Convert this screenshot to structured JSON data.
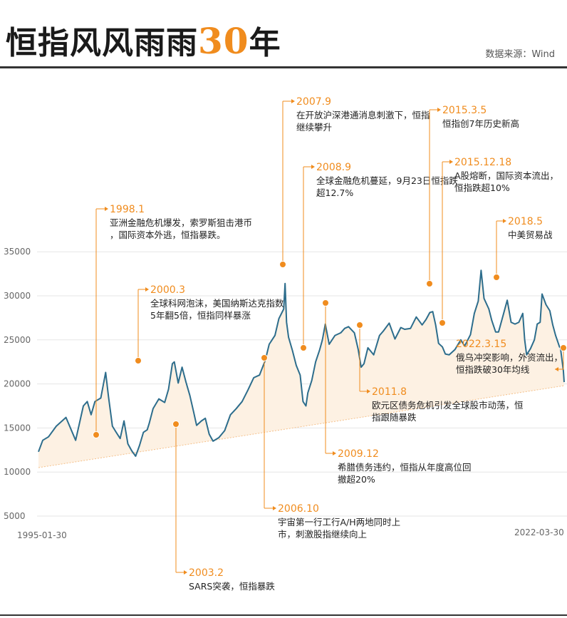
{
  "header": {
    "title_main": "恒指风风雨雨",
    "title_num": "30",
    "title_tail": "年",
    "source": "数据来源：Wind"
  },
  "colors": {
    "accent": "#f08c1e",
    "line": "#2d6d8c",
    "fill": "#fdf1e3"
  },
  "chart_data": {
    "type": "line",
    "x_start": "1995-01-30",
    "x_end": "2022-03-30",
    "yticks": [
      5000,
      10000,
      15000,
      20000,
      25000,
      30000,
      35000
    ],
    "ylim": [
      3000,
      37000
    ],
    "series": [
      {
        "points": [
          [
            1995.08,
            12300
          ],
          [
            1995.3,
            13600
          ],
          [
            1995.6,
            14000
          ],
          [
            1996.0,
            15200
          ],
          [
            1996.5,
            16200
          ],
          [
            1997.0,
            13600
          ],
          [
            1997.4,
            17500
          ],
          [
            1997.6,
            18000
          ],
          [
            1997.8,
            16500
          ],
          [
            1998.0,
            18000
          ],
          [
            1998.3,
            18400
          ],
          [
            1998.55,
            21300
          ],
          [
            1998.7,
            18500
          ],
          [
            1998.9,
            15200
          ],
          [
            1999.1,
            14500
          ],
          [
            1999.3,
            13800
          ],
          [
            1999.5,
            15800
          ],
          [
            1999.7,
            13200
          ],
          [
            1999.9,
            12400
          ],
          [
            2000.1,
            11800
          ],
          [
            2000.3,
            13000
          ],
          [
            2000.5,
            14500
          ],
          [
            2000.7,
            14800
          ],
          [
            2000.8,
            15500
          ],
          [
            2001.0,
            17200
          ],
          [
            2001.3,
            18300
          ],
          [
            2001.6,
            17900
          ],
          [
            2001.8,
            19400
          ],
          [
            2002.0,
            22300
          ],
          [
            2002.1,
            22500
          ],
          [
            2002.3,
            20100
          ],
          [
            2002.5,
            21900
          ],
          [
            2002.7,
            20200
          ],
          [
            2002.9,
            18700
          ],
          [
            2003.1,
            16800
          ],
          [
            2003.25,
            15300
          ],
          [
            2003.5,
            15800
          ],
          [
            2003.7,
            16100
          ],
          [
            2003.9,
            14300
          ],
          [
            2004.1,
            13500
          ],
          [
            2004.4,
            13900
          ],
          [
            2004.7,
            14700
          ],
          [
            2005.0,
            16500
          ],
          [
            2005.3,
            17200
          ],
          [
            2005.6,
            18000
          ],
          [
            2005.9,
            19300
          ],
          [
            2006.2,
            20700
          ],
          [
            2006.5,
            21000
          ],
          [
            2006.8,
            22700
          ],
          [
            2007.0,
            24500
          ],
          [
            2007.3,
            25500
          ],
          [
            2007.5,
            27400
          ],
          [
            2007.75,
            28500
          ],
          [
            2007.82,
            31400
          ],
          [
            2007.9,
            27000
          ],
          [
            2008.0,
            25300
          ],
          [
            2008.2,
            23800
          ],
          [
            2008.4,
            22100
          ],
          [
            2008.6,
            21000
          ],
          [
            2008.75,
            18000
          ],
          [
            2008.9,
            17500
          ],
          [
            2009.0,
            19000
          ],
          [
            2009.2,
            20400
          ],
          [
            2009.4,
            22500
          ],
          [
            2009.6,
            23800
          ],
          [
            2009.75,
            25000
          ],
          [
            2009.9,
            26800
          ],
          [
            2010.1,
            24500
          ],
          [
            2010.4,
            25500
          ],
          [
            2010.7,
            25800
          ],
          [
            2010.9,
            26300
          ],
          [
            2011.1,
            26500
          ],
          [
            2011.4,
            25800
          ],
          [
            2011.6,
            23900
          ],
          [
            2011.75,
            21900
          ],
          [
            2011.9,
            22300
          ],
          [
            2012.1,
            24100
          ],
          [
            2012.4,
            23300
          ],
          [
            2012.7,
            25500
          ],
          [
            2012.9,
            26000
          ],
          [
            2013.2,
            26900
          ],
          [
            2013.5,
            25100
          ],
          [
            2013.8,
            26400
          ],
          [
            2014.0,
            26200
          ],
          [
            2014.3,
            26300
          ],
          [
            2014.6,
            27600
          ],
          [
            2014.9,
            26700
          ],
          [
            2015.1,
            27300
          ],
          [
            2015.3,
            28100
          ],
          [
            2015.45,
            28200
          ],
          [
            2015.6,
            26700
          ],
          [
            2015.75,
            24600
          ],
          [
            2015.95,
            24200
          ],
          [
            2016.1,
            23400
          ],
          [
            2016.3,
            23300
          ],
          [
            2016.6,
            23900
          ],
          [
            2016.9,
            25000
          ],
          [
            2017.1,
            24300
          ],
          [
            2017.4,
            25600
          ],
          [
            2017.6,
            28000
          ],
          [
            2017.8,
            29400
          ],
          [
            2017.95,
            32900
          ],
          [
            2018.1,
            29700
          ],
          [
            2018.35,
            28500
          ],
          [
            2018.5,
            27200
          ],
          [
            2018.7,
            25900
          ],
          [
            2018.85,
            25900
          ],
          [
            2019.1,
            27900
          ],
          [
            2019.3,
            29500
          ],
          [
            2019.5,
            27000
          ],
          [
            2019.7,
            26800
          ],
          [
            2019.9,
            27000
          ],
          [
            2020.1,
            28000
          ],
          [
            2020.2,
            25000
          ],
          [
            2020.3,
            23300
          ],
          [
            2020.5,
            24000
          ],
          [
            2020.7,
            25000
          ],
          [
            2020.85,
            26800
          ],
          [
            2021.0,
            27000
          ],
          [
            2021.1,
            30200
          ],
          [
            2021.3,
            29000
          ],
          [
            2021.5,
            28300
          ],
          [
            2021.65,
            26700
          ],
          [
            2021.8,
            25500
          ],
          [
            2022.0,
            24200
          ],
          [
            2022.05,
            24100
          ],
          [
            2022.2,
            21500
          ],
          [
            2022.24,
            20200
          ]
        ]
      }
    ],
    "trend_line": {
      "from": [
        1995.08,
        10500
      ],
      "to": [
        2022.24,
        19800
      ]
    },
    "annotations": [
      {
        "date": "1998.1",
        "text": "亚洲金融危机爆发，索罗斯狙击港币，国际资本外逃，恒指暴跌。"
      },
      {
        "date": "2000.3",
        "text": "全球科网泡沫，美国纳斯达克指数5年翻5倍，恒指同样暴涨"
      },
      {
        "date": "2003.2",
        "text": "SARS突袭，恒指暴跌"
      },
      {
        "date": "2006.10",
        "text": "宇宙第一行工行A/H两地同时上市，刺激股指继续向上"
      },
      {
        "date": "2007.9",
        "text": "在开放沪深港通消息刺激下，恒指继续攀升"
      },
      {
        "date": "2008.9",
        "text": "全球金融危机蔓延，9月23日恒指跌超12.7%"
      },
      {
        "date": "2009.12",
        "text": "希腊债务违约，恒指从年度高位回撤超20%"
      },
      {
        "date": "2011.8",
        "text": "欧元区债务危机引发全球股市动荡，恒指跟随暴跌"
      },
      {
        "date": "2015.3.5",
        "text": "恒指创7年历史新高"
      },
      {
        "date": "2015.12.18",
        "text": "A股熔断，国际资本流出，恒指跌超10%"
      },
      {
        "date": "2018.5",
        "text": "中美贸易战"
      },
      {
        "date": "2022.3.15",
        "text": "俄乌冲突影响，外资流出，恒指跌破30年均线"
      }
    ]
  }
}
